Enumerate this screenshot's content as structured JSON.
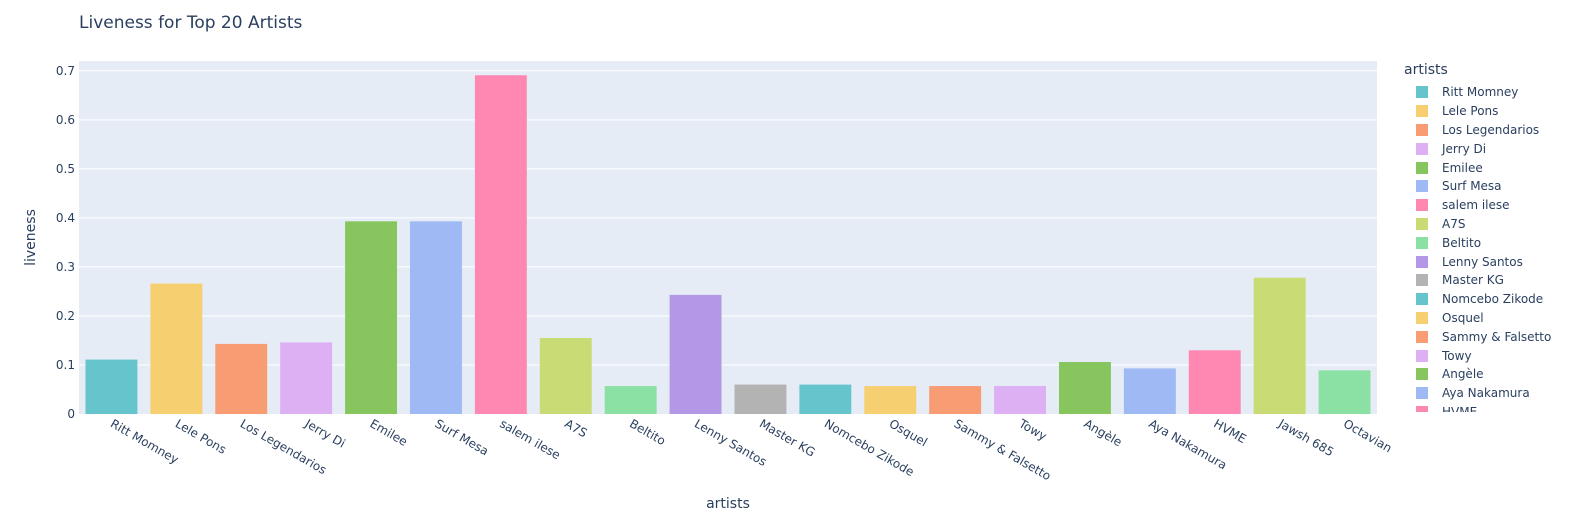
{
  "chart_data": {
    "type": "bar",
    "title": "Liveness for Top 20 Artists",
    "xlabel": "artists",
    "ylabel": "liveness",
    "ylim": [
      0,
      0.72
    ],
    "yticks": [
      "0",
      "0.1",
      "0.2",
      "0.3",
      "0.4",
      "0.5",
      "0.6",
      "0.7"
    ],
    "grid": true,
    "legend_title": "artists",
    "legend_position": "right",
    "categories": [
      "Ritt Momney",
      "Lele Pons",
      "Los Legendarios",
      "Jerry Di",
      "Emilee",
      "Surf Mesa",
      "salem ilese",
      "A7S",
      "Beltito",
      "Lenny Santos",
      "Master KG",
      "Nomcebo Zikode",
      "Osquel",
      "Sammy & Falsetto",
      "Towy",
      "Angèle",
      "Aya Nakamura",
      "HVME",
      "Jawsh 685",
      "Octavian"
    ],
    "values": [
      0.111,
      0.266,
      0.143,
      0.146,
      0.393,
      0.393,
      0.691,
      0.155,
      0.057,
      0.243,
      0.06,
      0.06,
      0.057,
      0.057,
      0.057,
      0.106,
      0.093,
      0.13,
      0.278,
      0.089
    ],
    "colors": [
      "#66C5CC",
      "#F6CF71",
      "#F89C74",
      "#DCB0F2",
      "#87C55F",
      "#9EB9F3",
      "#FE88B1",
      "#C9DB74",
      "#8BE0A4",
      "#B497E7",
      "#B3B3B3",
      "#66C5CC",
      "#F6CF71",
      "#F89C74",
      "#DCB0F2",
      "#87C55F",
      "#9EB9F3",
      "#FE88B1",
      "#C9DB74",
      "#8BE0A4"
    ],
    "plot_background": "#E5ECF6"
  }
}
